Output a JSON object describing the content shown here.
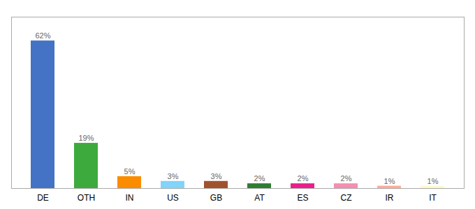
{
  "chart_data": {
    "type": "bar",
    "categories": [
      "DE",
      "OTH",
      "IN",
      "US",
      "GB",
      "AT",
      "ES",
      "CZ",
      "IR",
      "IT"
    ],
    "values": [
      62,
      19,
      5,
      3,
      3,
      2,
      2,
      2,
      1,
      1
    ],
    "value_labels": [
      "62%",
      "19%",
      "5%",
      "3%",
      "3%",
      "2%",
      "2%",
      "2%",
      "1%",
      "1%"
    ],
    "colors": [
      "#4472C4",
      "#3DAA3D",
      "#FB8C00",
      "#81D4FA",
      "#A0522D",
      "#2E7D32",
      "#E91E8C",
      "#F48FB1",
      "#FFAB9A",
      "#FFFACC"
    ],
    "ylim": [
      0,
      72
    ],
    "data_labels": true,
    "tick_labels": "x",
    "grid": false
  }
}
